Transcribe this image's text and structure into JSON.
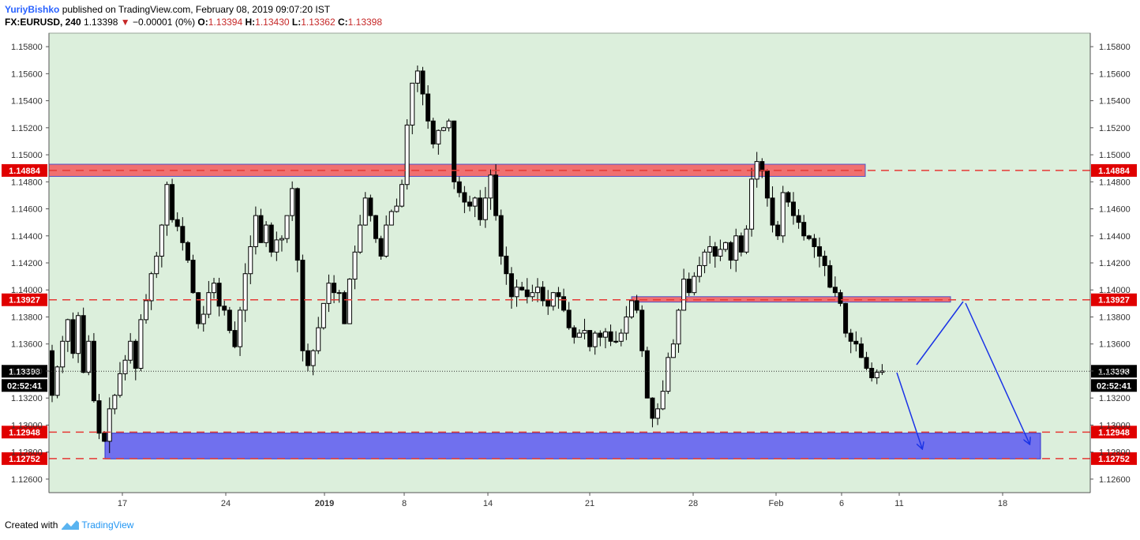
{
  "header": {
    "author": "YuriyBishko",
    "published_text": "published on TradingView.com, February 08, 2019 09:07:20 IST",
    "symbol": "FX:EURUSD, 240",
    "last": "1.13398",
    "change": "−0.00001 (0%)",
    "o_label": "O:",
    "o_value": "1.13394",
    "h_label": "H:",
    "h_value": "1.13430",
    "l_label": "L:",
    "l_value": "1.13362",
    "c_label": "C:",
    "c_value": "1.13398"
  },
  "footer": {
    "created_with": "Created with",
    "brand": "TradingView"
  },
  "colors": {
    "background": "#dcefdc",
    "resistance_zone": "#f07070",
    "support_zone": "#7070ee",
    "dashed_line": "#e53935",
    "arrow": "#1a33e6",
    "candle": "#000000"
  },
  "chart_data": {
    "type": "candlestick",
    "symbol": "FX:EURUSD",
    "timeframe": "240",
    "ylim": [
      1.255,
      1.158
    ],
    "y_ticks": [
      "1.15800",
      "1.15600",
      "1.15400",
      "1.15200",
      "1.15000",
      "1.14800",
      "1.14600",
      "1.14400",
      "1.14200",
      "1.14000",
      "1.13800",
      "1.13600",
      "1.13400",
      "1.13200",
      "1.13000",
      "1.12800",
      "1.12600"
    ],
    "x_ticks": [
      {
        "label": "17",
        "bold": false
      },
      {
        "label": "24",
        "bold": false
      },
      {
        "label": "2019",
        "bold": true
      },
      {
        "label": "8",
        "bold": false
      },
      {
        "label": "14",
        "bold": false
      },
      {
        "label": "21",
        "bold": false
      },
      {
        "label": "28",
        "bold": false
      },
      {
        "label": "Feb",
        "bold": false
      },
      {
        "label": "6",
        "bold": false
      },
      {
        "label": "11",
        "bold": false
      },
      {
        "label": "18",
        "bold": false
      }
    ],
    "levels": [
      {
        "label": "1.14884",
        "price": 1.14884
      },
      {
        "label": "1.13927",
        "price": 1.13927
      },
      {
        "label": "1.12948",
        "price": 1.12948
      },
      {
        "label": "1.12752",
        "price": 1.12752
      }
    ],
    "current_price": {
      "label": "1.13398",
      "price": 1.13398,
      "countdown": "02:52:41"
    },
    "zones": [
      {
        "kind": "resistance",
        "top": 1.1493,
        "bottom": 1.1484
      },
      {
        "kind": "resistance",
        "top": 1.1395,
        "bottom": 1.1391
      },
      {
        "kind": "support",
        "top": 1.1294,
        "bottom": 1.1275
      }
    ],
    "path": [
      1.1355,
      1.1322,
      1.1343,
      1.1362,
      1.1378,
      1.1353,
      1.1381,
      1.1339,
      1.1362,
      1.1318,
      1.1294,
      1.1288,
      1.1312,
      1.1322,
      1.1338,
      1.1348,
      1.1362,
      1.1342,
      1.1378,
      1.1392,
      1.1412,
      1.1425,
      1.1448,
      1.1478,
      1.1452,
      1.1447,
      1.1435,
      1.1422,
      1.1398,
      1.1375,
      1.1382,
      1.1398,
      1.1405,
      1.1388,
      1.1385,
      1.137,
      1.1358,
      1.1385,
      1.1412,
      1.1432,
      1.1455,
      1.1435,
      1.1448,
      1.1428,
      1.1437,
      1.1438,
      1.1455,
      1.1475,
      1.1422,
      1.1355,
      1.1344,
      1.1355,
      1.1372,
      1.139,
      1.1405,
      1.1398,
      1.1398,
      1.1375,
      1.1408,
      1.1428,
      1.1448,
      1.1468,
      1.1455,
      1.1438,
      1.1425,
      1.1448,
      1.1458,
      1.1462,
      1.1478,
      1.1522,
      1.1553,
      1.1562,
      1.1545,
      1.1525,
      1.1508,
      1.1518,
      1.152,
      1.1525,
      1.148,
      1.1472,
      1.1465,
      1.1462,
      1.1468,
      1.1452,
      1.1468,
      1.1485,
      1.1455,
      1.1425,
      1.1412,
      1.1395,
      1.1402,
      1.14,
      1.1395,
      1.1398,
      1.1402,
      1.1392,
      1.1388,
      1.1398,
      1.1395,
      1.1385,
      1.1372,
      1.1365,
      1.1368,
      1.137,
      1.1358,
      1.1368,
      1.1365,
      1.1369,
      1.1362,
      1.1362,
      1.1368,
      1.138,
      1.1392,
      1.1385,
      1.1355,
      1.132,
      1.1305,
      1.1312,
      1.1325,
      1.135,
      1.136,
      1.1385,
      1.1408,
      1.1398,
      1.141,
      1.1418,
      1.1428,
      1.1432,
      1.1425,
      1.143,
      1.1435,
      1.1422,
      1.144,
      1.1428,
      1.1445,
      1.1482,
      1.1495,
      1.1488,
      1.1468,
      1.1448,
      1.144,
      1.1472,
      1.1465,
      1.1455,
      1.145,
      1.144,
      1.1438,
      1.1432,
      1.1425,
      1.1418,
      1.1402,
      1.1398,
      1.139,
      1.1368,
      1.1362,
      1.136,
      1.135,
      1.1342,
      1.1335,
      1.1339,
      1.134
    ],
    "arrows": [
      {
        "from": [
          10.3,
          1.134
        ],
        "to": [
          11.3,
          1.1278
        ]
      },
      {
        "from": [
          10.6,
          1.1341
        ],
        "to": [
          11.6,
          1.1393
        ]
      },
      {
        "from": [
          11.6,
          1.1393
        ],
        "to": [
          12.6,
          1.1282
        ]
      }
    ]
  }
}
